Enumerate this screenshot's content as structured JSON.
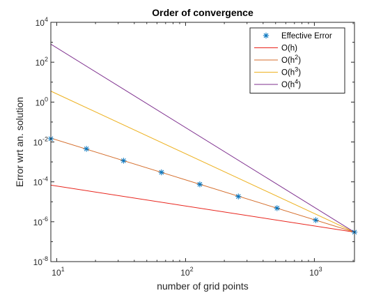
{
  "chart_data": {
    "type": "line",
    "title": "Order of convergence",
    "xlabel": "number of grid points",
    "ylabel": "Error wrt an. solution",
    "xscale": "log",
    "yscale": "log",
    "xlim": [
      9,
      2048
    ],
    "ylim": [
      1e-08,
      10000
    ],
    "grid": false,
    "legend_location": "top-right",
    "x_ticks": [
      {
        "value": 10,
        "base": "10",
        "exp": "1"
      },
      {
        "value": 100,
        "base": "10",
        "exp": "2"
      },
      {
        "value": 1000,
        "base": "10",
        "exp": "3"
      }
    ],
    "y_ticks": [
      {
        "value": 1e-08,
        "base": "10",
        "exp": "-8"
      },
      {
        "value": 1e-06,
        "base": "10",
        "exp": "-6"
      },
      {
        "value": 0.0001,
        "base": "10",
        "exp": "-4"
      },
      {
        "value": 0.01,
        "base": "10",
        "exp": "-2"
      },
      {
        "value": 1,
        "base": "10",
        "exp": "0"
      },
      {
        "value": 100,
        "base": "10",
        "exp": "2"
      },
      {
        "value": 10000,
        "base": "10",
        "exp": "4"
      }
    ],
    "series": [
      {
        "name": "Effective Error",
        "name_parts": [
          "Effective Error",
          "",
          ""
        ],
        "style": "marker",
        "color": "#0072BD",
        "x": [
          9,
          17,
          33,
          65,
          129,
          257,
          513,
          1025,
          2048
        ],
        "y": [
          0.0145,
          0.0045,
          0.00115,
          0.0003,
          7.5e-05,
          1.85e-05,
          4.8e-06,
          1.2e-06,
          3e-07
        ]
      },
      {
        "name": "O(h)",
        "name_parts": [
          "O(h)",
          "",
          ""
        ],
        "style": "line",
        "color": "#D95319",
        "line_color": "#E8231B",
        "x": [
          9,
          2048
        ],
        "y": [
          6.83e-05,
          3e-07
        ]
      },
      {
        "name": "O(h^2)",
        "name_parts": [
          "O(h",
          "2",
          ")"
        ],
        "style": "line",
        "color": "#D46D2B",
        "x": [
          9,
          2048
        ],
        "y": [
          0.01554,
          3e-07
        ]
      },
      {
        "name": "O(h^3)",
        "name_parts": [
          "O(h",
          "3",
          ")"
        ],
        "style": "line",
        "color": "#EDB120",
        "x": [
          9,
          2048
        ],
        "y": [
          3.54,
          3e-07
        ]
      },
      {
        "name": "O(h^4)",
        "name_parts": [
          "O(h",
          "4",
          ")"
        ],
        "style": "line",
        "color": "#7E2F8E",
        "x": [
          9,
          2048
        ],
        "y": [
          805,
          3e-07
        ]
      }
    ]
  }
}
